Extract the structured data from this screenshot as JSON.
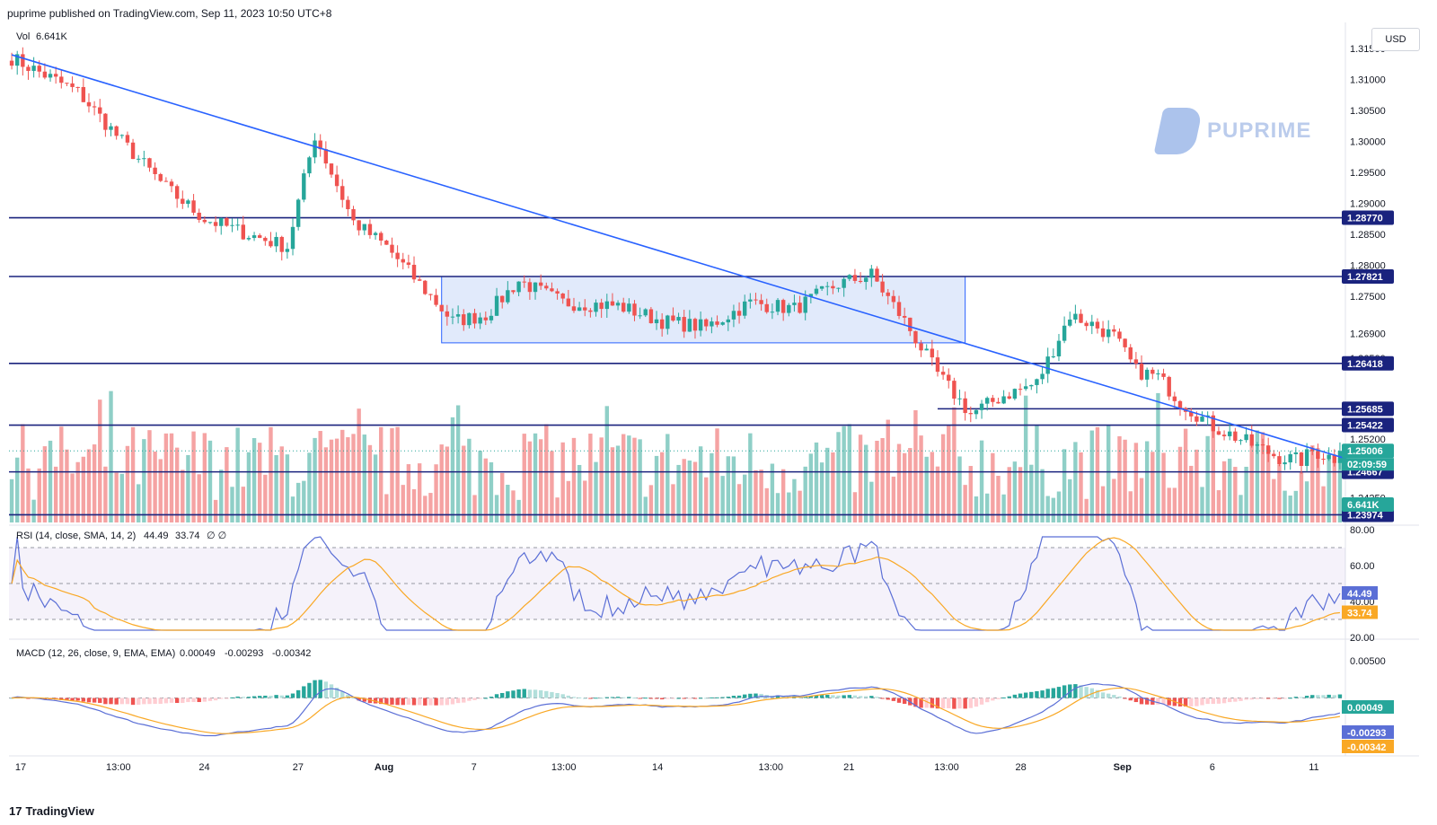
{
  "header": {
    "published": "puprime published on TradingView.com, Sep 11, 2023 10:50 UTC+8",
    "currency": "USD",
    "watermark": "PUPRIME",
    "footer": "TradingView"
  },
  "colors": {
    "up": "#26a69a",
    "down": "#ef5350",
    "vol_up": "#8fcfc7",
    "vol_down": "#f5a3a3",
    "hline": "#1a237e",
    "trendline": "#2962ff",
    "zone_fill": "#c9d9f7",
    "rsi_line": "#5b6fd6",
    "rsi_sma": "#f9a825",
    "macd_line": "#5b6fd6",
    "signal_line": "#f9a825"
  },
  "chart_data": [
    {
      "type": "candlestick",
      "title": "",
      "price_axis_ticks": [
        "1.31500",
        "1.31000",
        "1.30500",
        "1.30000",
        "1.29500",
        "1.29000",
        "1.28500",
        "1.28000",
        "1.27500",
        "1.26900",
        "1.26500",
        "1.25200",
        "1.24250"
      ],
      "price_tick_values": [
        1.315,
        1.31,
        1.305,
        1.3,
        1.295,
        1.29,
        1.285,
        1.28,
        1.275,
        1.269,
        1.265,
        1.252,
        1.2425
      ],
      "ylim": [
        1.2385,
        1.3185
      ],
      "x_axis_ticks": [
        "17",
        "13:00",
        "24",
        "27",
        "Aug",
        "7",
        "13:00",
        "14",
        "13:00",
        "21",
        "13:00",
        "28",
        "Sep",
        "6",
        "11"
      ],
      "key_points": [
        {
          "i": 0,
          "price": 1.3135
        },
        {
          "i": 12,
          "price": 1.308
        },
        {
          "i": 20,
          "price": 1.3
        },
        {
          "i": 28,
          "price": 1.2925
        },
        {
          "i": 35,
          "price": 1.2875
        },
        {
          "i": 43,
          "price": 1.285
        },
        {
          "i": 50,
          "price": 1.283
        },
        {
          "i": 55,
          "price": 1.301
        },
        {
          "i": 62,
          "price": 1.287
        },
        {
          "i": 68,
          "price": 1.283
        },
        {
          "i": 72,
          "price": 1.279
        },
        {
          "i": 80,
          "price": 1.271
        },
        {
          "i": 86,
          "price": 1.272
        },
        {
          "i": 92,
          "price": 1.2775
        },
        {
          "i": 100,
          "price": 1.274
        },
        {
          "i": 110,
          "price": 1.2735
        },
        {
          "i": 118,
          "price": 1.271
        },
        {
          "i": 126,
          "price": 1.27
        },
        {
          "i": 134,
          "price": 1.274
        },
        {
          "i": 142,
          "price": 1.273
        },
        {
          "i": 150,
          "price": 1.277
        },
        {
          "i": 156,
          "price": 1.2785
        },
        {
          "i": 162,
          "price": 1.271
        },
        {
          "i": 168,
          "price": 1.2625
        },
        {
          "i": 174,
          "price": 1.256
        },
        {
          "i": 180,
          "price": 1.259
        },
        {
          "i": 186,
          "price": 1.261
        },
        {
          "i": 192,
          "price": 1.272
        },
        {
          "i": 196,
          "price": 1.2705
        },
        {
          "i": 200,
          "price": 1.2685
        },
        {
          "i": 204,
          "price": 1.263
        },
        {
          "i": 208,
          "price": 1.262
        },
        {
          "i": 212,
          "price": 1.258
        },
        {
          "i": 218,
          "price": 1.254
        },
        {
          "i": 224,
          "price": 1.2515
        },
        {
          "i": 230,
          "price": 1.249
        },
        {
          "i": 234,
          "price": 1.2485
        },
        {
          "i": 236,
          "price": 1.25
        }
      ],
      "trendline": {
        "from": {
          "i": 0,
          "price": 1.314
        },
        "to": {
          "i": 241,
          "price": 1.2488
        }
      },
      "consolidation_zone": {
        "from_i": 78,
        "to_i": 173,
        "top": 1.27821,
        "bottom": 1.2675
      },
      "horizontal_levels": [
        {
          "value": 1.2877,
          "label": "1.28770"
        },
        {
          "value": 1.27821,
          "label": "1.27821"
        },
        {
          "value": 1.26418,
          "label": "1.26418"
        },
        {
          "value": 1.25685,
          "label": "1.25685",
          "from_i": 168
        },
        {
          "value": 1.25422,
          "label": "1.25422"
        },
        {
          "value": 1.24667,
          "label": "1.24667"
        },
        {
          "value": 1.23974,
          "label": "1.23974"
        }
      ],
      "last_price": {
        "value": 1.25006,
        "label": "1.25006",
        "countdown": "02:09:59"
      },
      "volume": {
        "label": "Vol",
        "value": "6.641K"
      }
    },
    {
      "type": "line",
      "title": "RSI (14, close, SMA, 14, 2)",
      "rsi_value": "44.49",
      "sma_value": "33.74",
      "suffix": "∅ ∅",
      "axis_ticks": [
        "80.00",
        "60.00",
        "40.00",
        "20.00"
      ],
      "axis_values": [
        80,
        60,
        40,
        20
      ],
      "ylim": [
        20,
        80
      ],
      "bands": [
        70,
        50,
        30
      ]
    },
    {
      "type": "bar",
      "title": "MACD (12, 26, close, 9, EMA, EMA)",
      "histogram": "0.00049",
      "macd": "-0.00293",
      "signal": "-0.00342",
      "axis_ticks": [
        "0.00500"
      ],
      "axis_values": [
        0.005
      ],
      "ylim": [
        -0.0075,
        0.0075
      ]
    }
  ]
}
